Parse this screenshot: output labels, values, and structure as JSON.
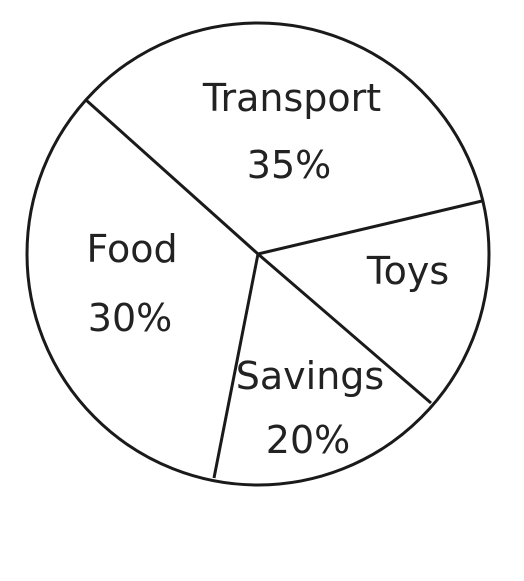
{
  "chart_data": {
    "type": "pie",
    "slices": [
      {
        "name": "Transport",
        "value_label": "35%"
      },
      {
        "name": "Toys",
        "value_label": ""
      },
      {
        "name": "Savings",
        "value_label": "20%"
      },
      {
        "name": "Food",
        "value_label": "30%"
      }
    ],
    "colors": {
      "stroke": "#1a1a1a",
      "fill": "#ffffff",
      "text": "#222222"
    }
  }
}
